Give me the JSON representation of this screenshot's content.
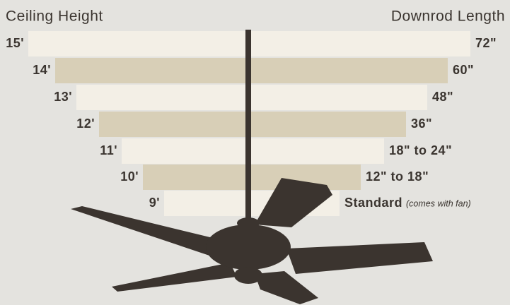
{
  "header": {
    "left": "Ceiling Height",
    "right": "Downrod Length"
  },
  "rows": [
    {
      "ceiling": "15'",
      "downrod": "72\""
    },
    {
      "ceiling": "14'",
      "downrod": "60\""
    },
    {
      "ceiling": "13'",
      "downrod": "48\""
    },
    {
      "ceiling": "12'",
      "downrod": "36\""
    },
    {
      "ceiling": "11'",
      "downrod": "18\" to 24\""
    },
    {
      "ceiling": "10'",
      "downrod": "12\" to 18\""
    },
    {
      "ceiling": "9'",
      "downrod": "Standard",
      "note": "(comes with fan)"
    }
  ]
}
